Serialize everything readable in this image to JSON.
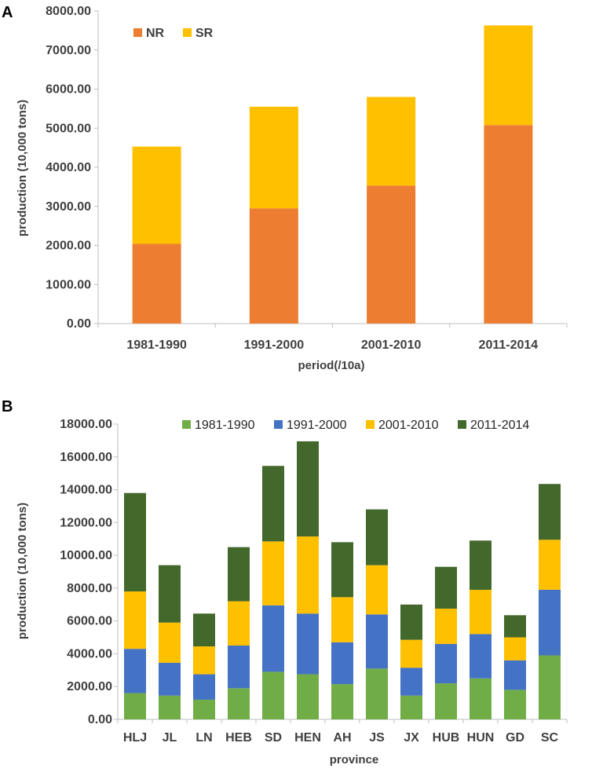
{
  "chart_data": [
    {
      "panel": "A",
      "type": "bar",
      "stacked": true,
      "categories": [
        "1981-1990",
        "1991-2000",
        "2001-2010",
        "2011-2014"
      ],
      "series": [
        {
          "name": "NR",
          "color": "#ED7D31",
          "values": [
            2040,
            2950,
            3530,
            5080
          ]
        },
        {
          "name": "SR",
          "color": "#FFC000",
          "values": [
            2490,
            2600,
            2270,
            2550
          ]
        }
      ],
      "xlabel": "period(/10a)",
      "ylabel": "production (10,000 tons)",
      "ylim": [
        0,
        8000
      ],
      "yticks": [
        "0.00",
        "1000.00",
        "2000.00",
        "3000.00",
        "4000.00",
        "5000.00",
        "6000.00",
        "7000.00",
        "8000.00"
      ],
      "legend_position": "top-left"
    },
    {
      "panel": "B",
      "type": "bar",
      "stacked": true,
      "categories": [
        "HLJ",
        "JL",
        "LN",
        "HEB",
        "SD",
        "HEN",
        "AH",
        "JS",
        "JX",
        "HUB",
        "HUN",
        "GD",
        "SC"
      ],
      "series": [
        {
          "name": "1981-1990",
          "color": "#70AD47",
          "values": [
            1600,
            1450,
            1200,
            1900,
            2900,
            2750,
            2150,
            3100,
            1450,
            2200,
            2500,
            1800,
            3900
          ]
        },
        {
          "name": "1991-2000",
          "color": "#4472C4",
          "values": [
            2700,
            2000,
            1550,
            2600,
            4050,
            3700,
            2550,
            3300,
            1700,
            2400,
            2700,
            1800,
            4000
          ]
        },
        {
          "name": "2001-2010",
          "color": "#FFC000",
          "values": [
            3500,
            2450,
            1700,
            2700,
            3900,
            4700,
            2750,
            3000,
            1700,
            2150,
            2700,
            1400,
            3050
          ]
        },
        {
          "name": "2011-2014",
          "color": "#43682B",
          "values": [
            6000,
            3500,
            2000,
            3300,
            4600,
            5800,
            3350,
            3400,
            2150,
            2550,
            3000,
            1350,
            3400
          ]
        }
      ],
      "xlabel": "province",
      "ylabel": "production (10,000 tons)",
      "ylim": [
        0,
        18000
      ],
      "yticks": [
        "0.00",
        "2000.00",
        "4000.00",
        "6000.00",
        "8000.00",
        "10000.00",
        "12000.00",
        "14000.00",
        "16000.00",
        "18000.00"
      ],
      "legend_position": "top"
    }
  ]
}
